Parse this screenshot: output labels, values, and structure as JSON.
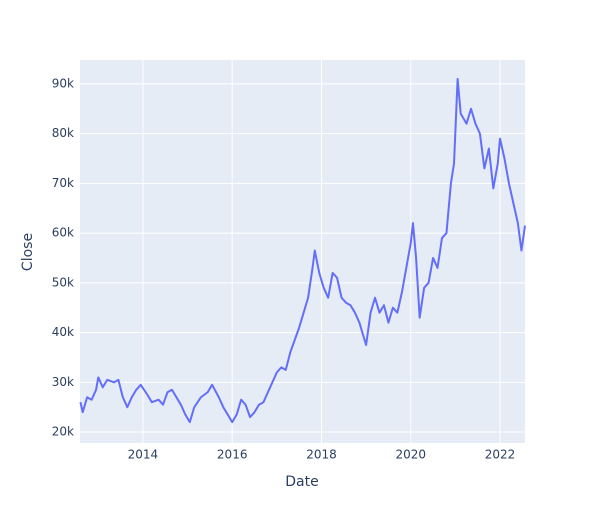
{
  "chart_data": {
    "type": "line",
    "x_label": "Date",
    "y_label": "Close",
    "x": [
      2012.6,
      2012.65,
      2012.75,
      2012.85,
      2012.95,
      2013.0,
      2013.1,
      2013.2,
      2013.35,
      2013.45,
      2013.55,
      2013.65,
      2013.75,
      2013.85,
      2013.95,
      2014.1,
      2014.2,
      2014.35,
      2014.45,
      2014.55,
      2014.65,
      2014.75,
      2014.85,
      2014.95,
      2015.05,
      2015.15,
      2015.3,
      2015.45,
      2015.55,
      2015.7,
      2015.8,
      2015.9,
      2016.0,
      2016.1,
      2016.2,
      2016.3,
      2016.4,
      2016.5,
      2016.6,
      2016.7,
      2016.8,
      2016.9,
      2017.0,
      2017.1,
      2017.2,
      2017.3,
      2017.4,
      2017.5,
      2017.6,
      2017.7,
      2017.8,
      2017.85,
      2017.95,
      2018.05,
      2018.15,
      2018.25,
      2018.35,
      2018.45,
      2018.55,
      2018.65,
      2018.75,
      2018.85,
      2019.0,
      2019.1,
      2019.2,
      2019.3,
      2019.4,
      2019.5,
      2019.6,
      2019.7,
      2019.8,
      2019.9,
      2020.0,
      2020.05,
      2020.12,
      2020.2,
      2020.3,
      2020.4,
      2020.5,
      2020.6,
      2020.7,
      2020.8,
      2020.9,
      2020.97,
      2021.05,
      2021.12,
      2021.25,
      2021.35,
      2021.45,
      2021.55,
      2021.65,
      2021.75,
      2021.85,
      2021.95,
      2022.0,
      2022.1,
      2022.2,
      2022.3,
      2022.4,
      2022.48,
      2022.56
    ],
    "series": [
      {
        "name": "Close",
        "color": "#636efa",
        "values": [
          26000,
          24000,
          27000,
          26500,
          28500,
          31000,
          29000,
          30500,
          30000,
          30500,
          27000,
          25000,
          27000,
          28500,
          29500,
          27500,
          26000,
          26500,
          25500,
          28000,
          28500,
          27000,
          25500,
          23500,
          22000,
          25000,
          27000,
          28000,
          29500,
          27000,
          25000,
          23500,
          22000,
          23500,
          26500,
          25500,
          23000,
          24000,
          25500,
          26000,
          28000,
          30000,
          32000,
          33000,
          32500,
          36000,
          38500,
          41000,
          44000,
          47000,
          53000,
          56500,
          52000,
          49000,
          47000,
          52000,
          51000,
          47000,
          46000,
          45500,
          44000,
          42000,
          37500,
          44000,
          47000,
          44000,
          45500,
          42000,
          45000,
          44000,
          48000,
          53000,
          58000,
          62000,
          55000,
          43000,
          49000,
          50000,
          55000,
          53000,
          59000,
          60000,
          70000,
          74000,
          91000,
          84000,
          82000,
          85000,
          82000,
          80000,
          73000,
          77000,
          69000,
          74000,
          79000,
          75000,
          70000,
          66000,
          62000,
          56500,
          61500
        ]
      }
    ],
    "xlim": [
      2012.59,
      2022.56
    ],
    "xticks": [
      2014,
      2016,
      2018,
      2020,
      2022
    ],
    "ylim": [
      17800,
      94800
    ],
    "yticks": [
      {
        "value": 20000,
        "label": "20k"
      },
      {
        "value": 30000,
        "label": "30k"
      },
      {
        "value": 40000,
        "label": "40k"
      },
      {
        "value": 50000,
        "label": "50k"
      },
      {
        "value": 60000,
        "label": "60k"
      },
      {
        "value": 70000,
        "label": "70k"
      },
      {
        "value": 80000,
        "label": "80k"
      },
      {
        "value": 90000,
        "label": "90k"
      }
    ],
    "grid": true
  }
}
